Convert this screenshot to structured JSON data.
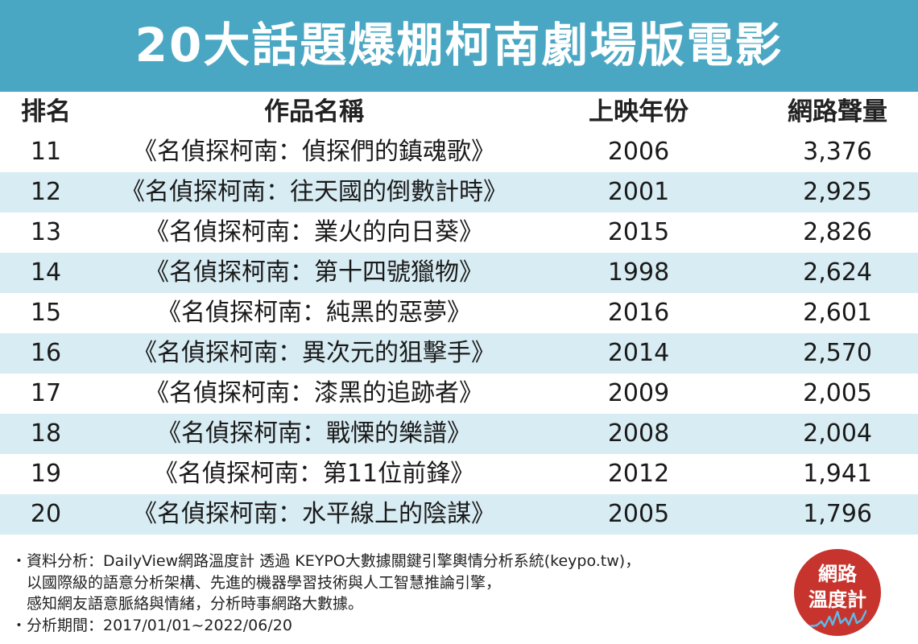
{
  "title": "20大話題爆棚柯南劇場版電影",
  "columns": {
    "rank": "排名",
    "title": "作品名稱",
    "year": "上映年份",
    "volume": "網路聲量"
  },
  "rows": [
    {
      "rank": "11",
      "title": "《名偵探柯南：偵探們的鎮魂歌》",
      "year": "2006",
      "volume": "3,376"
    },
    {
      "rank": "12",
      "title": "《名偵探柯南：往天國的倒數計時》",
      "year": "2001",
      "volume": "2,925"
    },
    {
      "rank": "13",
      "title": "《名偵探柯南：業火的向日葵》",
      "year": "2015",
      "volume": "2,826"
    },
    {
      "rank": "14",
      "title": "《名偵探柯南：第十四號獵物》",
      "year": "1998",
      "volume": "2,624"
    },
    {
      "rank": "15",
      "title": "《名偵探柯南：純黑的惡夢》",
      "year": "2016",
      "volume": "2,601"
    },
    {
      "rank": "16",
      "title": "《名偵探柯南：異次元的狙擊手》",
      "year": "2014",
      "volume": "2,570"
    },
    {
      "rank": "17",
      "title": "《名偵探柯南：漆黑的追跡者》",
      "year": "2009",
      "volume": "2,005"
    },
    {
      "rank": "18",
      "title": "《名偵探柯南：戰慄的樂譜》",
      "year": "2008",
      "volume": "2,004"
    },
    {
      "rank": "19",
      "title": "《名偵探柯南：第11位前鋒》",
      "year": "2012",
      "volume": "1,941"
    },
    {
      "rank": "20",
      "title": "《名偵探柯南：水平線上的陰謀》",
      "year": "2005",
      "volume": "1,796"
    }
  ],
  "notes": [
    "・資料分析：DailyView網路溫度計 透過 KEYPO大數據關鍵引擎輿情分析系統(keypo.tw)，",
    "　以國際級的語意分析架構、先進的機器學習技術與人工智慧推論引擎，",
    "　感知網友語意脈絡與情緒，分析時事網路大數據。",
    "・分析期間：2017/01/01~2022/06/20"
  ],
  "logo": {
    "line1": "網路",
    "line2": "溫度計"
  },
  "colors": {
    "header": "#4aa7c3",
    "row_alt": "#d8ecf3",
    "logo": "#c7342e"
  }
}
